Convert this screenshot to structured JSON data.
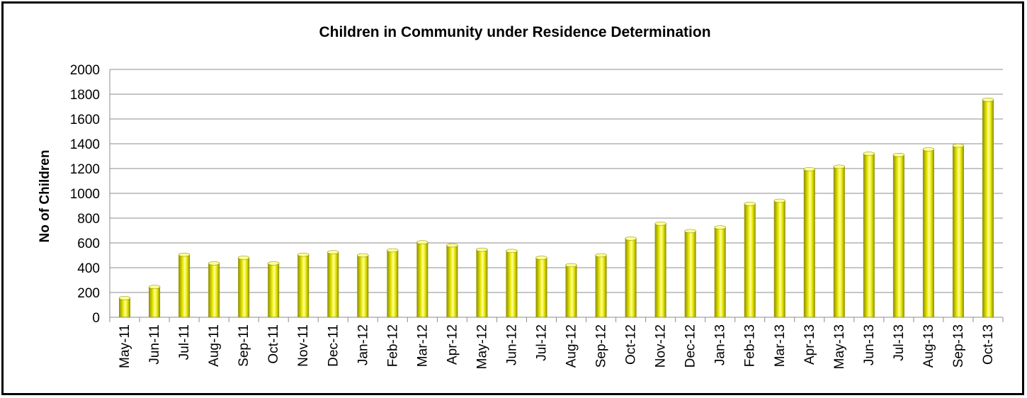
{
  "chart_data": {
    "type": "bar",
    "title": "Children in Community under Residence Determination",
    "xlabel": "",
    "ylabel": "No of Children",
    "ylim": [
      0,
      2000
    ],
    "y_ticks": [
      0,
      200,
      400,
      600,
      800,
      1000,
      1200,
      1400,
      1600,
      1800,
      2000
    ],
    "y_tick_labels": [
      "0",
      "200",
      "400",
      "600",
      "800",
      "1000",
      "1200",
      "1400",
      "1600",
      "1800",
      "2000"
    ],
    "grid": true,
    "legend": "none",
    "bar_color": "#e6e600",
    "bar_highlight_color": "#ffff99",
    "bar_shadow_color": "#8a8a00",
    "categories": [
      "May-11",
      "Jun-11",
      "Jul-11",
      "Aug-11",
      "Sep-11",
      "Oct-11",
      "Nov-11",
      "Dec-11",
      "Jan-12",
      "Feb-12",
      "Mar-12",
      "Apr-12",
      "May-12",
      "Jun-12",
      "Jul-12",
      "Aug-12",
      "Sep-12",
      "Oct-12",
      "Nov-12",
      "Dec-12",
      "Jan-13",
      "Feb-13",
      "Mar-13",
      "Apr-13",
      "May-13",
      "Jun-13",
      "Jul-13",
      "Aug-13",
      "Sep-13",
      "Oct-13"
    ],
    "values": [
      155,
      245,
      505,
      435,
      480,
      435,
      505,
      525,
      500,
      540,
      605,
      580,
      545,
      535,
      480,
      420,
      500,
      635,
      755,
      695,
      725,
      915,
      940,
      1195,
      1215,
      1320,
      1310,
      1355,
      1385,
      1755
    ]
  }
}
